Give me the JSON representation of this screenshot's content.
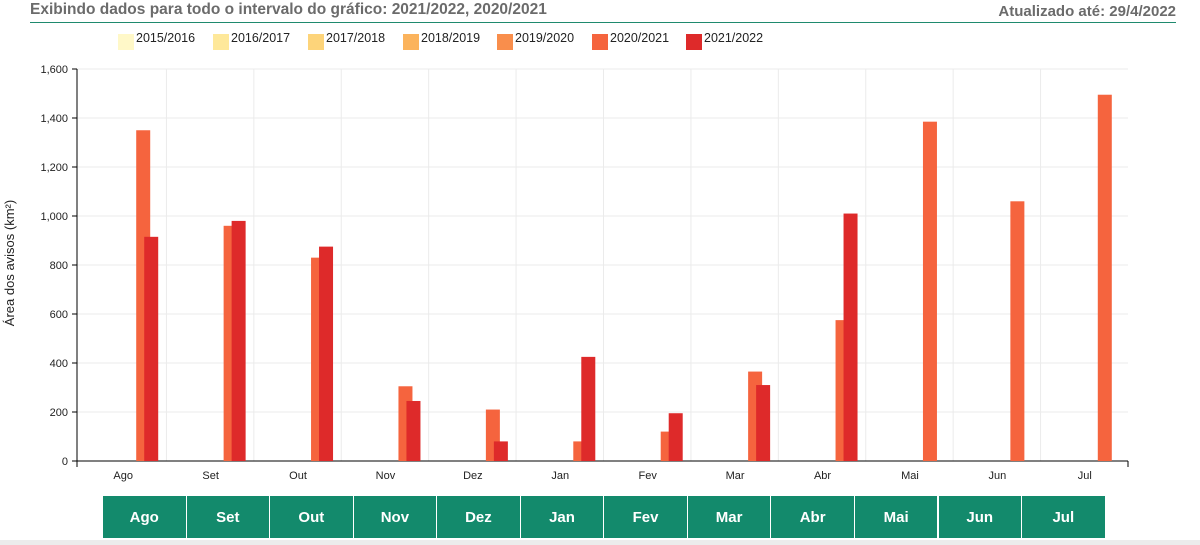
{
  "header": {
    "title": "Exibindo dados para todo o intervalo do gráfico: 2021/2022, 2020/2021",
    "updated": "Atualizado até: 29/4/2022"
  },
  "legend": [
    {
      "label": "2015/2016",
      "color": "#fff8c8"
    },
    {
      "label": "2016/2017",
      "color": "#fee89a"
    },
    {
      "label": "2017/2018",
      "color": "#fdd47a"
    },
    {
      "label": "2018/2019",
      "color": "#fbb35c"
    },
    {
      "label": "2019/2020",
      "color": "#f98e4c"
    },
    {
      "label": "2020/2021",
      "color": "#f5643e"
    },
    {
      "label": "2021/2022",
      "color": "#de2a2a"
    }
  ],
  "chart_data": {
    "type": "bar",
    "ylabel": "Área dos avisos (km²)",
    "ylim": [
      0,
      1600
    ],
    "yticks": [
      "0",
      "200",
      "400",
      "600",
      "800",
      "1,000",
      "1,200",
      "1,400",
      "1,600"
    ],
    "grid": true,
    "legend_position": "top",
    "categories": [
      "Ago",
      "Set",
      "Out",
      "Nov",
      "Dez",
      "Jan",
      "Fev",
      "Mar",
      "Abr",
      "Mai",
      "Jun",
      "Jul"
    ],
    "series": [
      {
        "name": "2020/2021",
        "color": "#f5643e",
        "values": [
          1350,
          960,
          830,
          305,
          210,
          80,
          120,
          365,
          575,
          1385,
          1060,
          1495
        ]
      },
      {
        "name": "2021/2022",
        "color": "#de2a2a",
        "values": [
          915,
          980,
          875,
          245,
          80,
          425,
          195,
          310,
          1010,
          null,
          null,
          null
        ]
      }
    ]
  },
  "month_buttons": [
    "Ago",
    "Set",
    "Out",
    "Nov",
    "Dez",
    "Jan",
    "Fev",
    "Mar",
    "Abr",
    "Mai",
    "Jun",
    "Jul"
  ]
}
